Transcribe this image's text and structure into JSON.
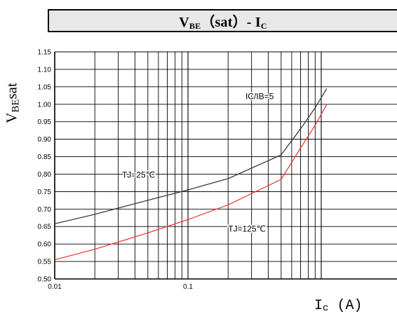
{
  "title": {
    "symbol": "V",
    "subscript": "BE",
    "rest": "（sat）- I",
    "subscript2": "C"
  },
  "y_axis_label": {
    "symbol": "V",
    "subscript": "BE",
    "suffix": "sat"
  },
  "x_axis_label": {
    "symbol": "I",
    "subscript": "c",
    "unit": "(A)"
  },
  "chart_data": {
    "type": "line",
    "title": "VBE（sat）- IC",
    "xlabel": "Ic (A)",
    "ylabel": "VBEsat",
    "xscale": "log",
    "xlim": [
      0.01,
      1.1
    ],
    "ylim": [
      0.5,
      1.15
    ],
    "y_ticks": [
      "0.50",
      "0.55",
      "0.60",
      "0.65",
      "0.70",
      "0.75",
      "0.80",
      "0.85",
      "0.90",
      "0.95",
      "1.00",
      "1.05",
      "1.10",
      "1.15"
    ],
    "x_ticks": [
      "0.01",
      "0.1"
    ],
    "grid": true,
    "colors": {
      "series_25": "#3a3a3a",
      "series_125": "#ee3b3b",
      "grid": "#000000"
    },
    "series": [
      {
        "name": "TJ=25℃",
        "color": "#3a3a3a",
        "x": [
          0.01,
          0.02,
          0.05,
          0.1,
          0.2,
          0.5,
          0.7,
          0.9,
          1.1
        ],
        "y": [
          0.658,
          0.685,
          0.725,
          0.755,
          0.787,
          0.855,
          0.93,
          0.99,
          1.045
        ]
      },
      {
        "name": "TJ=125℃",
        "color": "#ee3b3b",
        "x": [
          0.01,
          0.02,
          0.05,
          0.1,
          0.2,
          0.5,
          0.7,
          0.9,
          1.1
        ],
        "y": [
          0.555,
          0.585,
          0.632,
          0.67,
          0.712,
          0.785,
          0.875,
          0.94,
          1.0
        ]
      }
    ],
    "annotations": [
      {
        "text": "IC/IB=5",
        "x": 0.27,
        "y": 1.015
      },
      {
        "text": "TJ=25℃",
        "x": 0.032,
        "y": 0.79
      },
      {
        "text": "TJ=125℃",
        "x": 0.2,
        "y": 0.635
      }
    ]
  }
}
